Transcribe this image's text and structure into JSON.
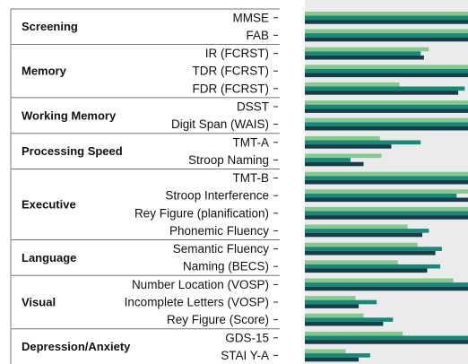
{
  "chart_data": {
    "type": "bar",
    "orientation": "horizontal",
    "grouped": true,
    "colors": {
      "series_light": "#86c98d",
      "series_teal": "#168979",
      "series_dark": "#193d48",
      "plot_background": "#ebebeb",
      "group_divider": "#777777"
    },
    "domains": [
      {
        "name": "Screening",
        "tests": [
          {
            "label": "MMSE",
            "values": [
              1.0,
              1.0,
              1.0
            ]
          },
          {
            "label": "FAB",
            "values": [
              1.0,
              1.0,
              1.0
            ]
          }
        ]
      },
      {
        "name": "Memory",
        "tests": [
          {
            "label": "IR (FCRST)",
            "values": [
              0.76,
              0.71,
              0.73
            ]
          },
          {
            "label": "TDR (FCRST)",
            "values": [
              1.0,
              1.0,
              1.0
            ]
          },
          {
            "label": "FDR (FCRST)",
            "values": [
              0.58,
              0.98,
              0.94
            ]
          }
        ]
      },
      {
        "name": "Working Memory",
        "tests": [
          {
            "label": "DSST",
            "values": [
              1.0,
              1.0,
              1.0
            ]
          },
          {
            "label": "Digit Span (WAIS)",
            "values": [
              1.0,
              1.0,
              1.0
            ]
          }
        ]
      },
      {
        "name": "Processing Speed",
        "tests": [
          {
            "label": "TMT-A",
            "values": [
              0.46,
              0.71,
              0.53
            ]
          },
          {
            "label": "Stroop Naming",
            "values": [
              0.47,
              0.28,
              0.36
            ]
          }
        ]
      },
      {
        "name": "Executive",
        "tests": [
          {
            "label": "TMT-B",
            "values": [
              1.0,
              1.0,
              1.0
            ]
          },
          {
            "label": "Stroop Interference",
            "values": [
              1.0,
              0.93,
              1.0
            ]
          },
          {
            "label": "Rey Figure (planification)",
            "values": [
              1.0,
              1.0,
              1.0
            ]
          },
          {
            "label": "Phonemic Fluency",
            "values": [
              0.63,
              0.76,
              0.72
            ]
          }
        ]
      },
      {
        "name": "Language",
        "tests": [
          {
            "label": "Semantic Fluency",
            "values": [
              0.69,
              0.84,
              0.8
            ]
          },
          {
            "label": "Naming (BECS)",
            "values": [
              0.57,
              0.83,
              0.75
            ]
          }
        ]
      },
      {
        "name": "Visual",
        "tests": [
          {
            "label": "Number Location (VOSP)",
            "values": [
              0.91,
              1.0,
              1.0
            ]
          },
          {
            "label": "Incomplete Letters (VOSP)",
            "values": [
              0.31,
              0.44,
              0.33
            ]
          },
          {
            "label": "Rey Figure (Score)",
            "values": [
              0.36,
              0.54,
              0.48
            ]
          }
        ]
      },
      {
        "name": "Depression/Anxiety",
        "tests": [
          {
            "label": "GDS-15",
            "values": [
              0.6,
              1.0,
              1.0
            ]
          },
          {
            "label": "STAI Y-A",
            "values": [
              0.25,
              0.4,
              0.33
            ]
          }
        ]
      }
    ]
  }
}
